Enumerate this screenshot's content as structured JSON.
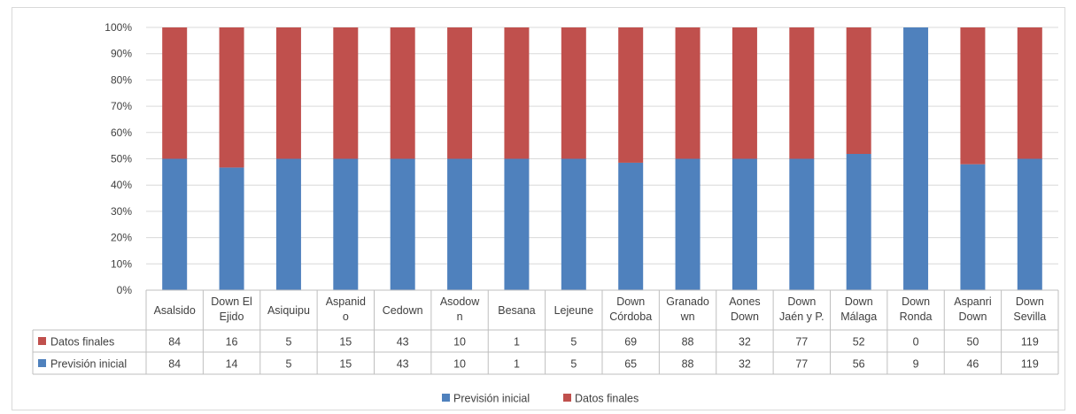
{
  "chart_data": {
    "type": "bar",
    "stacked": "percent",
    "title": "",
    "xlabel": "",
    "ylabel": "",
    "ylim": [
      0,
      100
    ],
    "y_ticks": [
      "0%",
      "10%",
      "20%",
      "30%",
      "40%",
      "50%",
      "60%",
      "70%",
      "80%",
      "90%",
      "100%"
    ],
    "categories": [
      [
        "Asalsido"
      ],
      [
        "Down El",
        "Ejido"
      ],
      [
        "Asiquipu"
      ],
      [
        "Aspanid",
        "o"
      ],
      [
        "Cedown"
      ],
      [
        "Asodow",
        "n"
      ],
      [
        "Besana"
      ],
      [
        "Lejeune"
      ],
      [
        "Down",
        "Córdoba"
      ],
      [
        "Granado",
        "wn"
      ],
      [
        "Aones",
        "Down"
      ],
      [
        "Down",
        "Jaén y P."
      ],
      [
        "Down",
        "Málaga"
      ],
      [
        "Down",
        "Ronda"
      ],
      [
        "Aspanri",
        "Down"
      ],
      [
        "Down",
        "Sevilla"
      ]
    ],
    "series": [
      {
        "name": "Previsión inicial",
        "color": "#4f81bd",
        "values": [
          84,
          14,
          5,
          15,
          43,
          10,
          1,
          5,
          65,
          88,
          32,
          77,
          56,
          9,
          46,
          119
        ]
      },
      {
        "name": "Datos finales",
        "color": "#c0504d",
        "values": [
          84,
          16,
          5,
          15,
          43,
          10,
          1,
          5,
          69,
          88,
          32,
          77,
          52,
          0,
          50,
          119
        ]
      }
    ],
    "table_rows": [
      "Datos finales",
      "Previsión inicial"
    ],
    "legend": {
      "position": "bottom",
      "items": [
        "Previsión inicial",
        "Datos finales"
      ]
    },
    "grid": true
  }
}
